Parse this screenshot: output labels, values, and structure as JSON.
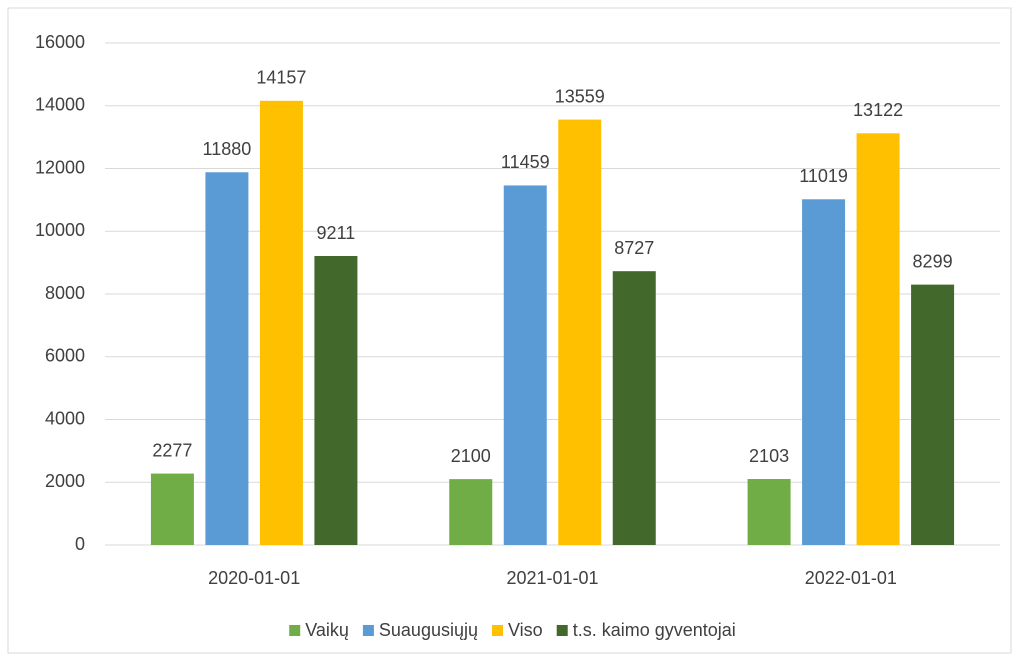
{
  "chart_data": {
    "type": "bar",
    "categories": [
      "2020-01-01",
      "2021-01-01",
      "2022-01-01"
    ],
    "series": [
      {
        "name": "Vaikų",
        "color": "#70ad47",
        "values": [
          2277,
          2100,
          2103
        ]
      },
      {
        "name": "Suaugusiųjų",
        "color": "#5b9bd5",
        "values": [
          11880,
          11459,
          11019
        ]
      },
      {
        "name": "Viso",
        "color": "#ffc000",
        "values": [
          14157,
          13559,
          13122
        ]
      },
      {
        "name": "t.s. kaimo gyventojai",
        "color": "#43682b",
        "values": [
          9211,
          8727,
          8299
        ]
      }
    ],
    "ylim": [
      0,
      16000
    ],
    "yticks": [
      0,
      2000,
      4000,
      6000,
      8000,
      10000,
      12000,
      14000,
      16000
    ],
    "grid": true,
    "legend": "bottom"
  }
}
